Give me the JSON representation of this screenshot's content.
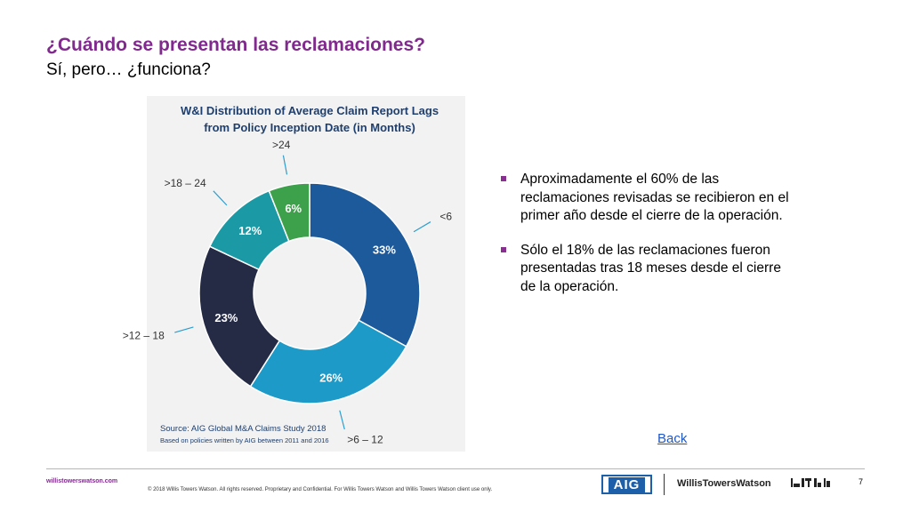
{
  "header": {
    "title": "¿Cuándo se presentan las reclamaciones?",
    "subtitle": "Sí, pero… ¿funciona?"
  },
  "chart_data": {
    "type": "pie",
    "title": "W&I Distribution of Average Claim Report Lags from Policy Inception Date (in Months)",
    "title_lines": [
      "W&I Distribution of Average Claim Report Lags",
      "from Policy Inception Date (in Months)"
    ],
    "categories": [
      "<6",
      ">6 – 12",
      ">12 – 18",
      ">18 – 24",
      ">24"
    ],
    "values": [
      33,
      26,
      23,
      12,
      6
    ],
    "value_labels": [
      "33%",
      "26%",
      "23%",
      "12%",
      "6%"
    ],
    "colors": [
      "#1d5a9b",
      "#1e9ac9",
      "#252b45",
      "#1b9aa5",
      "#3da04a"
    ],
    "donut": true,
    "source": "Source: AIG Global M&A Claims Study 2018",
    "note": "Based on policies written by AIG between 2011 and 2016"
  },
  "bullets": [
    "Aproximadamente el 60% de las reclamaciones revisadas se recibieron en el primer año desde el cierre de la operación.",
    "Sólo el 18% de las reclamaciones fueron presentadas tras 18 meses desde el cierre de la operación."
  ],
  "back_link": "Back",
  "footer": {
    "url": "willistowerswatson.com",
    "copyright": "© 2018 Willis Towers Watson. All rights reserved. Proprietary and Confidential. For Willis Towers Watson and Willis Towers Watson client use only.",
    "aig_logo": "AIG",
    "wtw_logo": "WillisTowersWatson",
    "page_number": "7"
  },
  "colors": {
    "title": "#7f2a8c",
    "bullet_marker": "#8a2f92",
    "link": "#1f57c3"
  }
}
